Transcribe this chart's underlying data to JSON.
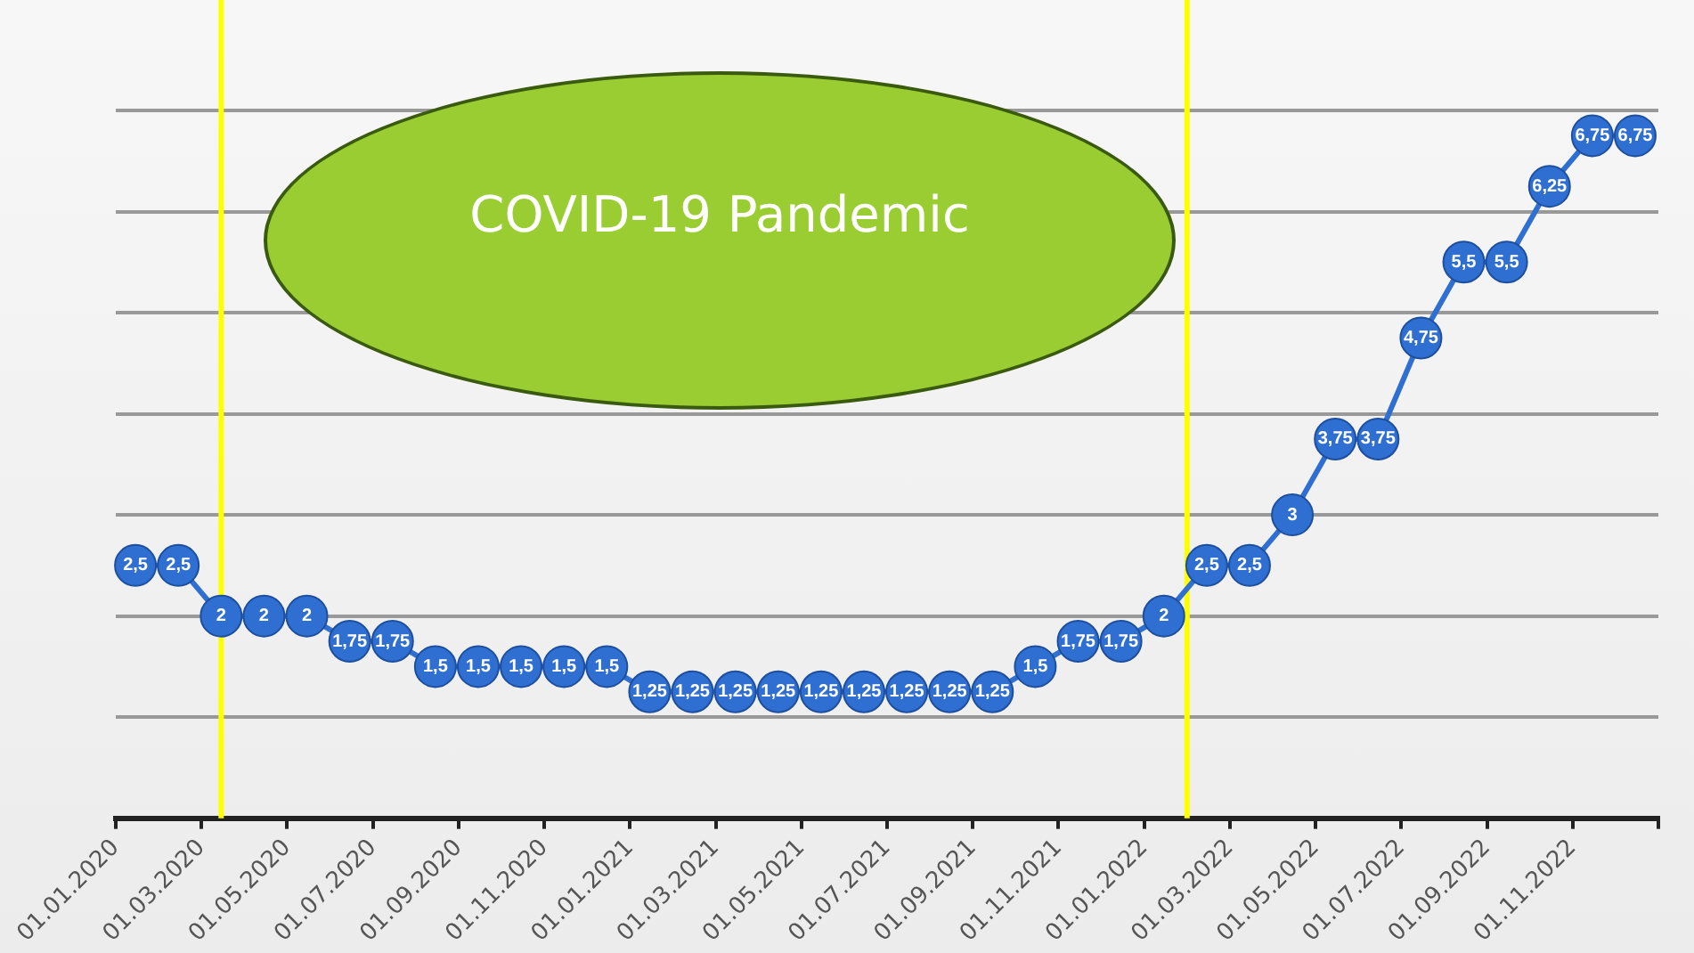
{
  "chart_data": {
    "type": "line",
    "x": [
      "2020-01-15",
      "2020-02-15",
      "2020-03-15",
      "2020-04-15",
      "2020-05-15",
      "2020-06-15",
      "2020-07-15",
      "2020-08-15",
      "2020-09-15",
      "2020-10-15",
      "2020-11-15",
      "2020-12-15",
      "2021-01-15",
      "2021-02-15",
      "2021-03-15",
      "2021-04-15",
      "2021-05-15",
      "2021-06-15",
      "2021-07-15",
      "2021-08-15",
      "2021-09-15",
      "2021-10-15",
      "2021-11-15",
      "2021-12-15",
      "2022-01-15",
      "2022-02-15",
      "2022-03-15",
      "2022-04-15",
      "2022-05-15",
      "2022-06-15",
      "2022-07-15",
      "2022-08-15",
      "2022-09-15",
      "2022-10-15",
      "2022-11-15",
      "2022-12-15"
    ],
    "series": [
      {
        "color": "#2f6fd1",
        "values": [
          2.5,
          2.5,
          2,
          2,
          2,
          1.75,
          1.75,
          1.5,
          1.5,
          1.5,
          1.5,
          1.5,
          1.25,
          1.25,
          1.25,
          1.25,
          1.25,
          1.25,
          1.25,
          1.25,
          1.25,
          1.5,
          1.75,
          1.75,
          2,
          2.5,
          2.5,
          3,
          3.75,
          3.75,
          4.75,
          5.5,
          5.5,
          6.25,
          6.75,
          6.75
        ],
        "value_labels": [
          "2,5",
          "2,5",
          "2",
          "2",
          "2",
          "1,75",
          "1,75",
          "1,5",
          "1,5",
          "1,5",
          "1,5",
          "1,5",
          "1,25",
          "1,25",
          "1,25",
          "1,25",
          "1,25",
          "1,25",
          "1,25",
          "1,25",
          "1,25",
          "1,5",
          "1,75",
          "1,75",
          "2",
          "2,5",
          "2,5",
          "3",
          "3,75",
          "3,75",
          "4,75",
          "5,5",
          "5,5",
          "6,25",
          "6,75",
          "6,75"
        ]
      }
    ],
    "xlim": [
      "2020-01-01",
      "2023-01-01"
    ],
    "xticks": [
      {
        "value": "2020-01-01",
        "label": "01.01.2020"
      },
      {
        "value": "2020-03-01",
        "label": "01.03.2020"
      },
      {
        "value": "2020-05-01",
        "label": "01.05.2020"
      },
      {
        "value": "2020-07-01",
        "label": "01.07.2020"
      },
      {
        "value": "2020-09-01",
        "label": "01.09.2020"
      },
      {
        "value": "2020-11-01",
        "label": "01.11.2020"
      },
      {
        "value": "2021-01-01",
        "label": "01.01.2021"
      },
      {
        "value": "2021-03-01",
        "label": "01.03.2021"
      },
      {
        "value": "2021-05-01",
        "label": "01.05.2021"
      },
      {
        "value": "2021-07-01",
        "label": "01.07.2021"
      },
      {
        "value": "2021-09-01",
        "label": "01.09.2021"
      },
      {
        "value": "2021-11-01",
        "label": "01.11.2021"
      },
      {
        "value": "2022-01-01",
        "label": "01.01.2022"
      },
      {
        "value": "2022-03-01",
        "label": "01.03.2022"
      },
      {
        "value": "2022-05-01",
        "label": "01.05.2022"
      },
      {
        "value": "2022-07-01",
        "label": "01.07.2022"
      },
      {
        "value": "2022-09-01",
        "label": "01.09.2022"
      },
      {
        "value": "2022-11-01",
        "label": "01.11.2022"
      },
      {
        "value": "2023-01-01",
        "label": null
      }
    ],
    "ylim": [
      0,
      7
    ],
    "yticks": [
      0,
      1,
      2,
      3,
      4,
      5,
      6,
      7
    ],
    "tick_labels": "x",
    "grid": "y",
    "legend": false,
    "marker": "circle",
    "ref_lines": [
      {
        "axis": "x",
        "value": "2020-03-15",
        "color": "#ffff00"
      },
      {
        "axis": "x",
        "value": "2022-02-01",
        "color": "#ffff00"
      }
    ],
    "annotations": [
      "COVID-19 Pandemic"
    ]
  }
}
